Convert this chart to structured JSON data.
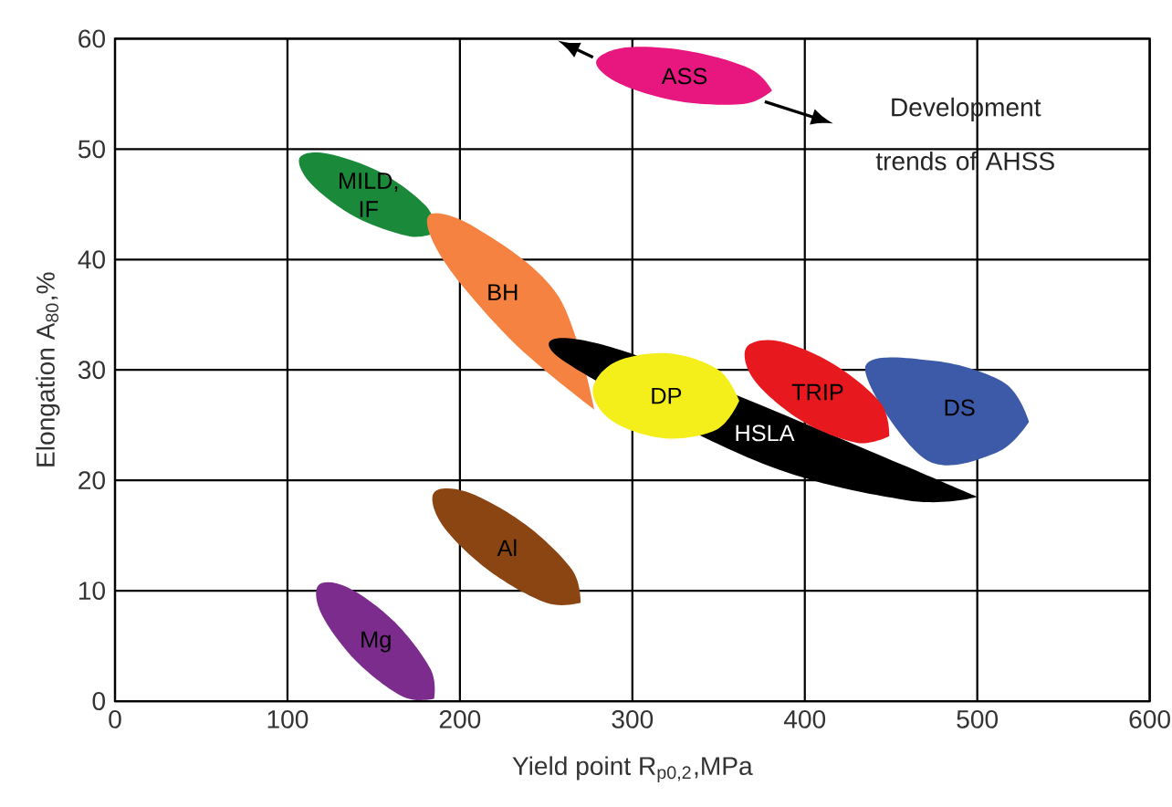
{
  "chart_data": {
    "type": "area",
    "xlabel": "Yield point R$_{p0,2}$,MPa",
    "ylabel": "Elongation A$_{80}$,%",
    "xlim": [
      0,
      600
    ],
    "xticks": [
      0,
      100,
      200,
      300,
      400,
      500,
      600
    ],
    "ylim": [
      0,
      60
    ],
    "yticks": [
      0,
      10,
      20,
      30,
      40,
      50,
      60
    ],
    "grid": true,
    "annotations": [
      "Development trends of AHSS"
    ],
    "series": [
      {
        "name": "ASS",
        "color": "#e8177f",
        "x": [
          381,
          365,
          328,
          293,
          279,
          296,
          332,
          368
        ],
        "values": [
          55.3,
          54.1,
          54.3,
          55.9,
          57.9,
          59.2,
          58.9,
          57.3
        ]
      },
      {
        "name": "MILD, IF",
        "color": "#1a8a3a",
        "x": [
          187,
          171,
          140,
          114,
          107,
          123,
          154,
          180
        ],
        "values": [
          42.5,
          42.1,
          43.8,
          46.8,
          49.2,
          49.6,
          47.9,
          44.9
        ]
      },
      {
        "name": "BH",
        "color": "#f58240",
        "x": [
          null,
          278,
          231,
          191,
          182,
          210,
          257,
          null
        ],
        "values": [
          null,
          26.4,
          32.5,
          39.8,
          44.0,
          42.8,
          36.7,
          null
        ]
      },
      {
        "name": "HSLA",
        "color": "#000000",
        "x": [
          500,
          459,
          371,
          null,
          256,
          297,
          null,
          null
        ],
        "values": [
          18.5,
          18.2,
          21.8,
          null,
          31.3,
          31.6,
          null,
          null
        ]
      },
      {
        "name": "DP",
        "color": "#f4ee1a",
        "x": [
          362,
          349,
          319,
          289,
          277,
          290,
          321,
          350
        ],
        "values": [
          27.2,
          24.6,
          23.8,
          25.3,
          28.1,
          30.7,
          31.5,
          30.0
        ]
      },
      {
        "name": "DS",
        "color": "#3c5aa8",
        "x": [
          530,
          511,
          470,
          null,
          null,
          435,
          476,
          516
        ],
        "values": [
          25.3,
          22.5,
          21.9,
          null,
          null,
          30.2,
          30.8,
          28.8
        ]
      },
      {
        "name": "TRIP",
        "color": "#e8191e",
        "x": [
          449,
          430,
          398,
          371,
          366,
          385,
          417,
          444
        ],
        "values": [
          24.0,
          23.4,
          25.4,
          29.0,
          32.0,
          32.6,
          30.5,
          27.0
        ]
      },
      {
        "name": "Al",
        "color": "#8b4513",
        "x": [
          270,
          250,
          217,
          190,
          185,
          205,
          238,
          265
        ],
        "values": [
          8.9,
          8.9,
          11.8,
          15.9,
          18.9,
          18.9,
          16.0,
          11.9
        ]
      },
      {
        "name": "Mg",
        "color": "#7b2c8c",
        "x": [
          185,
          167,
          140,
          120,
          118,
          135,
          162,
          183
        ],
        "values": [
          0.2,
          0.4,
          3.6,
          7.8,
          10.5,
          10.3,
          7.2,
          2.9
        ]
      }
    ]
  }
}
